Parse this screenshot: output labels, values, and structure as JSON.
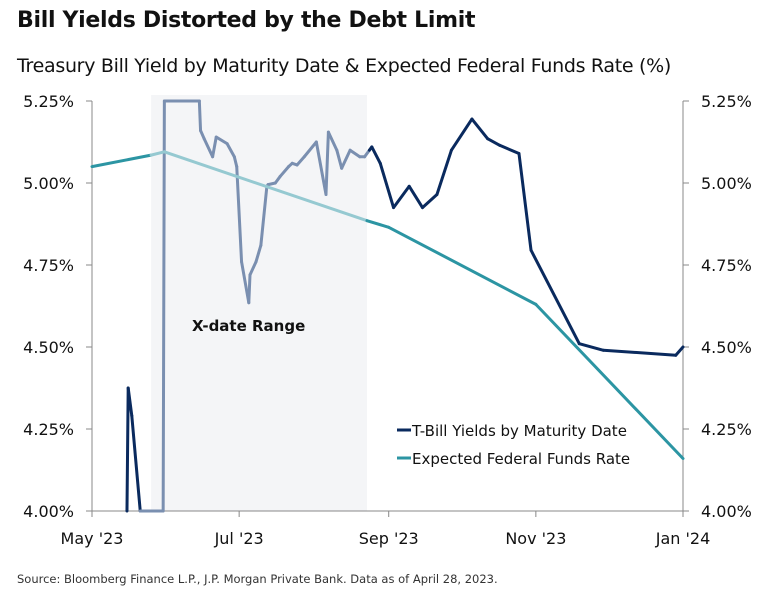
{
  "title": "Bill Yields Distorted by the Debt Limit",
  "subtitle": "Treasury Bill Yield by Maturity Date & Expected Federal Funds Rate (%)",
  "source": "Source: Bloomberg Finance L.P., J.P. Morgan Private Bank. Data as of April 28, 2023.",
  "colors": {
    "tbill": "#0a2a5e",
    "tbill_xdate": "#7a8fb0",
    "fedfunds": "#2c95a3",
    "fedfunds_xdate": "#95c9d1",
    "shade": "#f4f5f7",
    "axis": "#888888"
  },
  "chart_data": {
    "type": "line",
    "title": "Treasury Bill Yield by Maturity Date & Expected Federal Funds Rate (%)",
    "xlabel": "",
    "ylabel": "",
    "x_unit": "days since 2023-05-01",
    "xlim": [
      0,
      245
    ],
    "ylim": [
      4.0,
      5.25
    ],
    "yticks": [
      4.0,
      4.25,
      4.5,
      4.75,
      5.0,
      5.25
    ],
    "ytick_labels": [
      "4.00%",
      "4.25%",
      "4.50%",
      "4.75%",
      "5.00%",
      "5.25%"
    ],
    "xticks": [
      0,
      61,
      123,
      184,
      245
    ],
    "xtick_labels": [
      "May '23",
      "Jul '23",
      "Sep '23",
      "Nov '23",
      "Jan '24"
    ],
    "dual_y_axis": true,
    "grid": false,
    "legend": {
      "placement": "bottom-right",
      "entries": [
        "T-Bill Yields by Maturity Date",
        "Expected Federal Funds Rate"
      ]
    },
    "annotations": [
      {
        "text": "X-date Range",
        "type": "shaded-region",
        "x_range": [
          24.5,
          114
        ]
      }
    ],
    "series": [
      {
        "name": "T-Bill Yields by Maturity Date",
        "x": [
          14.5,
          15.0,
          16.5,
          20.0,
          29.5,
          30.0,
          44.5,
          45.0,
          46.5,
          50.0,
          51.5,
          56.0,
          59.0,
          60.0,
          62.0,
          65.0,
          65.5,
          68.0,
          70.0,
          72.5,
          73.0,
          76.0,
          78.0,
          81.5,
          83.0,
          85.0,
          88.0,
          93.0,
          97.0,
          98.0,
          101.5,
          103.5,
          107.0,
          111.0,
          113.0,
          115.0,
          116.0,
          119.5,
          125.0,
          131.5,
          137.0,
          143.0,
          149.0,
          157.5,
          164.0,
          169.0,
          177.0,
          182.0,
          202.0,
          212.0,
          242.0,
          245.0
        ],
        "y": [
          4.0,
          4.375,
          4.29,
          4.0,
          4.0,
          5.25,
          5.25,
          5.16,
          5.135,
          5.08,
          5.14,
          5.12,
          5.08,
          5.05,
          4.76,
          4.635,
          4.72,
          4.76,
          4.81,
          4.99,
          4.995,
          5.0,
          5.02,
          5.05,
          5.06,
          5.055,
          5.08,
          5.125,
          4.965,
          5.155,
          5.1,
          5.045,
          5.1,
          5.08,
          5.08,
          5.1,
          5.11,
          5.06,
          4.925,
          4.99,
          4.925,
          4.965,
          5.1,
          5.195,
          5.135,
          5.115,
          5.09,
          4.795,
          4.51,
          4.49,
          4.475,
          4.5
        ]
      },
      {
        "name": "Expected Federal Funds Rate",
        "x": [
          0,
          24.5,
          30.0,
          114.0,
          123.0,
          184.0,
          245.0
        ],
        "y": [
          5.05,
          5.085,
          5.095,
          4.885,
          4.865,
          4.63,
          4.16
        ]
      }
    ]
  }
}
